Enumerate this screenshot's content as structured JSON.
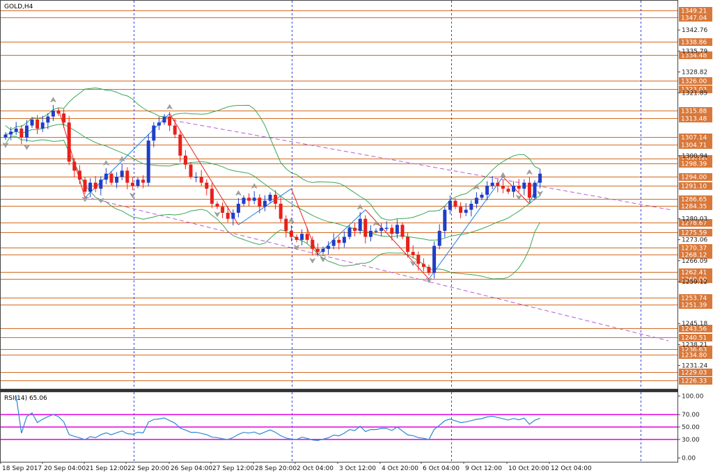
{
  "chart_data": {
    "type": "candlestick",
    "title": "GOLD,H4",
    "indicator_label": "RSI(14) 65.06",
    "price_range": [
      1223.5,
      1352.5
    ],
    "rsi_range": [
      -6,
      106
    ],
    "horizontal_levels": [
      1349.21,
      1347.04,
      1338.86,
      1334.48,
      1326.0,
      1323.03,
      1315.88,
      1313.48,
      1307.14,
      1304.71,
      1300.0,
      1298.39,
      1294.0,
      1291.1,
      1286.65,
      1284.35,
      1278.67,
      1275.59,
      1270.37,
      1268.12,
      1262.41,
      1260.0,
      1253.74,
      1251.39,
      1243.56,
      1240.51,
      1236.63,
      1234.8,
      1229.03,
      1226.33
    ],
    "level_labels": [
      "1349.21",
      "1347.04",
      "1338.86",
      "1334.48",
      "1326.00",
      "1323.03",
      "1315.88",
      "1313.48",
      "1307.14",
      "1304.71",
      "1300.00",
      "1298.39",
      "1294.00",
      "1291.10",
      "1286.65",
      "1284.35",
      "1278.67",
      "1275.59",
      "1270.37",
      "1268.12",
      "1262.41",
      "1260.00",
      "1253.74",
      "1251.39",
      "1243.56",
      "1240.51",
      "1236.63",
      "1234.80",
      "1229.03",
      "1226.33"
    ],
    "axis_ticks": [
      "1342.76",
      "1335.79",
      "1328.82",
      "1321.85",
      "1300.94",
      "1280.03",
      "1273.06",
      "1266.09",
      "1259.12",
      "1245.18",
      "1238.21",
      "1231.24"
    ],
    "rsi_levels": [
      70,
      50,
      30
    ],
    "rsi_ticks": [
      "100.00",
      "70.00",
      "50.00",
      "30.00",
      "0.00"
    ],
    "x_labels": [
      "18 Sep 2017",
      "20 Sep 04:00",
      "21 Sep 12:00",
      "22 Sep 20:00",
      "26 Sep 04:00",
      "27 Sep 12:00",
      "28 Sep 20:00",
      "2 Oct 04:00",
      "3 Oct 12:00",
      "4 Oct 20:00",
      "6 Oct 04:00",
      "9 Oct 12:00",
      "10 Oct 20:00",
      "12 Oct 04:00"
    ],
    "closes": [
      1308,
      1309,
      1310,
      1307,
      1311,
      1313,
      1310,
      1312,
      1314,
      1316,
      1315,
      1312,
      1299,
      1296,
      1293,
      1289,
      1292,
      1290,
      1293,
      1295,
      1292,
      1294,
      1296,
      1292,
      1291,
      1293,
      1292,
      1306,
      1311,
      1312,
      1314,
      1311,
      1308,
      1301,
      1298,
      1294,
      1294,
      1292,
      1290,
      1285,
      1284,
      1282,
      1280,
      1282,
      1285,
      1287,
      1286,
      1287,
      1284,
      1286,
      1288,
      1285,
      1280,
      1276,
      1274,
      1273,
      1275,
      1273,
      1270,
      1269,
      1270,
      1271,
      1273,
      1272,
      1274,
      1277,
      1276,
      1280,
      1274,
      1276,
      1276,
      1277,
      1277,
      1275,
      1278,
      1274,
      1269,
      1268,
      1265,
      1264,
      1262,
      1271,
      1276,
      1283,
      1286,
      1284,
      1282,
      1283,
      1285,
      1287,
      1288,
      1291,
      1292,
      1291,
      1290,
      1289,
      1291,
      1290,
      1292,
      1287,
      1292,
      1295
    ],
    "series": [
      {
        "name": "Bollinger Upper"
      },
      {
        "name": "Bollinger Middle"
      },
      {
        "name": "Bollinger Lower"
      },
      {
        "name": "RSI(14)"
      }
    ],
    "grid": false,
    "colors": {
      "bull": "#1f3ec7",
      "bear": "#e8201c",
      "level_line": "#d2691e",
      "level_bg": "#d8783a",
      "band": "#3aa654",
      "rsi_line": "#2c86d6",
      "rsi_level": "#e000e0",
      "trend_channel": "#b65ad6",
      "zigzag_red": "#e8201c",
      "zigzag_blue": "#1f7fe0",
      "vgrid": "#3344dd",
      "frame": "#444444"
    }
  }
}
